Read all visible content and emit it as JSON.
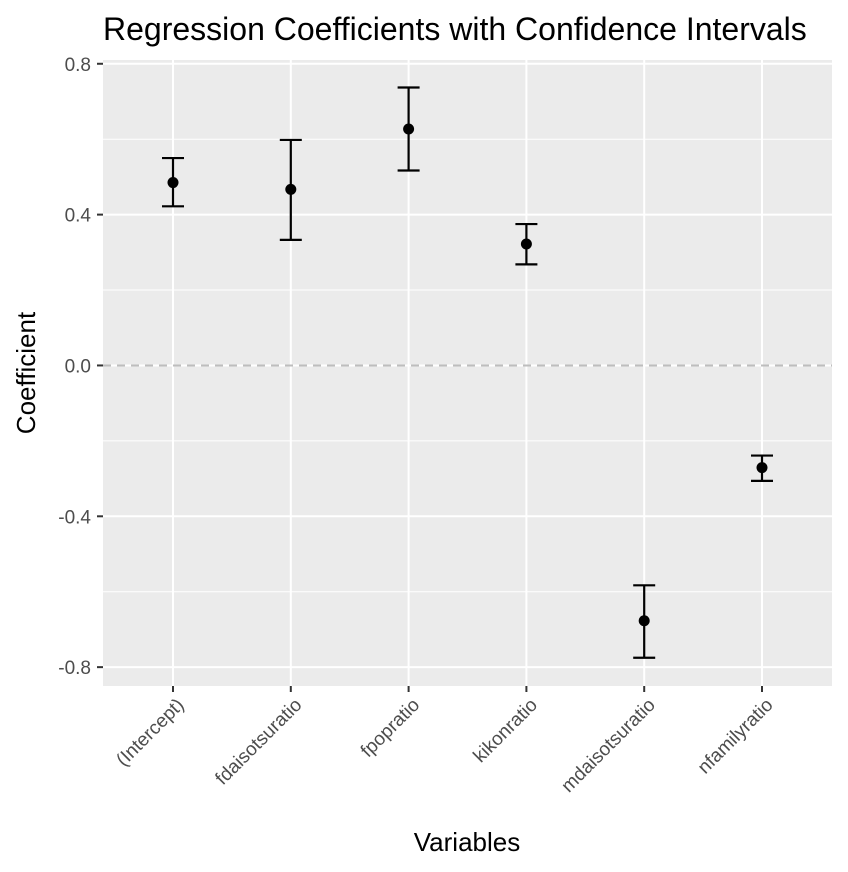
{
  "chart_data": {
    "type": "scatter",
    "title": "Regression Coefficients with Confidence Intervals",
    "xlabel": "Variables",
    "ylabel": "Coefficient",
    "ylim": [
      -0.85,
      0.81
    ],
    "yticks": [
      0.8,
      0.4,
      0.0,
      -0.4,
      -0.8
    ],
    "ytick_labels": [
      "0.8",
      "0.4",
      "0.0",
      "-0.4",
      "-0.8"
    ],
    "reference_line": {
      "y": 0.0,
      "style": "dashed",
      "color": "#bdbdbd"
    },
    "categories": [
      "(Intercept)",
      "fdaisotsuratio",
      "fpopratio",
      "kikonratio",
      "mdaisotsuratio",
      "nfamilyratio"
    ],
    "estimates": [
      0.485,
      0.467,
      0.627,
      0.322,
      -0.677,
      -0.271
    ],
    "ci_lower": [
      0.422,
      0.333,
      0.517,
      0.268,
      -0.775,
      -0.306
    ],
    "ci_upper": [
      0.55,
      0.598,
      0.737,
      0.375,
      -0.583,
      -0.239
    ],
    "grid": true,
    "legend": "none"
  }
}
